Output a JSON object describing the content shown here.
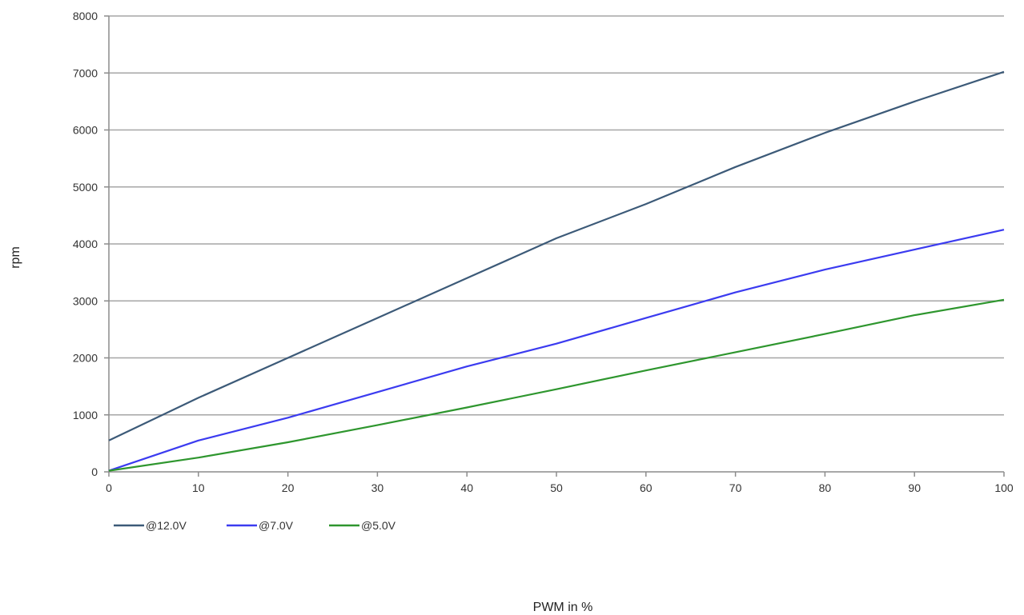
{
  "chart_data": {
    "type": "line",
    "title": "",
    "xlabel": "PWM in %",
    "ylabel": "rpm",
    "xlim": [
      0,
      100
    ],
    "ylim": [
      0,
      8000
    ],
    "x_ticks": [
      0,
      10,
      20,
      30,
      40,
      50,
      60,
      70,
      80,
      90,
      100
    ],
    "y_ticks": [
      0,
      1000,
      2000,
      3000,
      4000,
      5000,
      6000,
      7000,
      8000
    ],
    "grid": "horizontal",
    "legend_position": "bottom-left",
    "series": [
      {
        "name": "@12.0V",
        "color": "#3c5a78",
        "x": [
          0,
          10,
          20,
          30,
          40,
          50,
          60,
          70,
          80,
          90,
          100
        ],
        "y": [
          550,
          1300,
          2000,
          2700,
          3400,
          4100,
          4700,
          5350,
          5950,
          6500,
          7020
        ]
      },
      {
        "name": "@7.0V",
        "color": "#3b3bf0",
        "x": [
          0,
          10,
          20,
          30,
          40,
          50,
          60,
          70,
          80,
          90,
          100
        ],
        "y": [
          20,
          550,
          950,
          1400,
          1850,
          2250,
          2700,
          3150,
          3550,
          3900,
          4250
        ]
      },
      {
        "name": "@5.0V",
        "color": "#2e962e",
        "x": [
          0,
          10,
          20,
          30,
          40,
          50,
          60,
          70,
          80,
          90,
          100
        ],
        "y": [
          20,
          250,
          520,
          820,
          1130,
          1450,
          1780,
          2100,
          2420,
          2750,
          3020
        ]
      }
    ]
  }
}
